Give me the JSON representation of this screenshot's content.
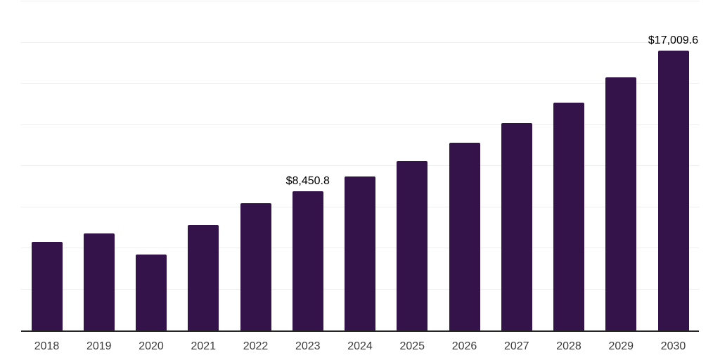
{
  "chart_data": {
    "type": "bar",
    "title": "",
    "xlabel": "",
    "ylabel": "",
    "categories": [
      "2018",
      "2019",
      "2020",
      "2021",
      "2022",
      "2023",
      "2024",
      "2025",
      "2026",
      "2027",
      "2028",
      "2029",
      "2030"
    ],
    "values": [
      5370,
      5890,
      4600,
      6400,
      7720,
      8450.8,
      9340,
      10320,
      11430,
      12620,
      13860,
      15390,
      17009.6
    ],
    "ylim": [
      0,
      20000
    ],
    "grid_step": 2500,
    "grid_on": true,
    "y_axis_labels_visible": false,
    "legend": "none",
    "annotations": [
      {
        "category": "2023",
        "label": "$8,450.8"
      },
      {
        "category": "2030",
        "label": "$17,009.6"
      }
    ],
    "colors": {
      "bar": "#331349",
      "axis_line": "#262626",
      "gridline": "#efefef",
      "tick_label": "#3c3c3c",
      "annotation_text": "#000000",
      "background": "#ffffff"
    }
  }
}
